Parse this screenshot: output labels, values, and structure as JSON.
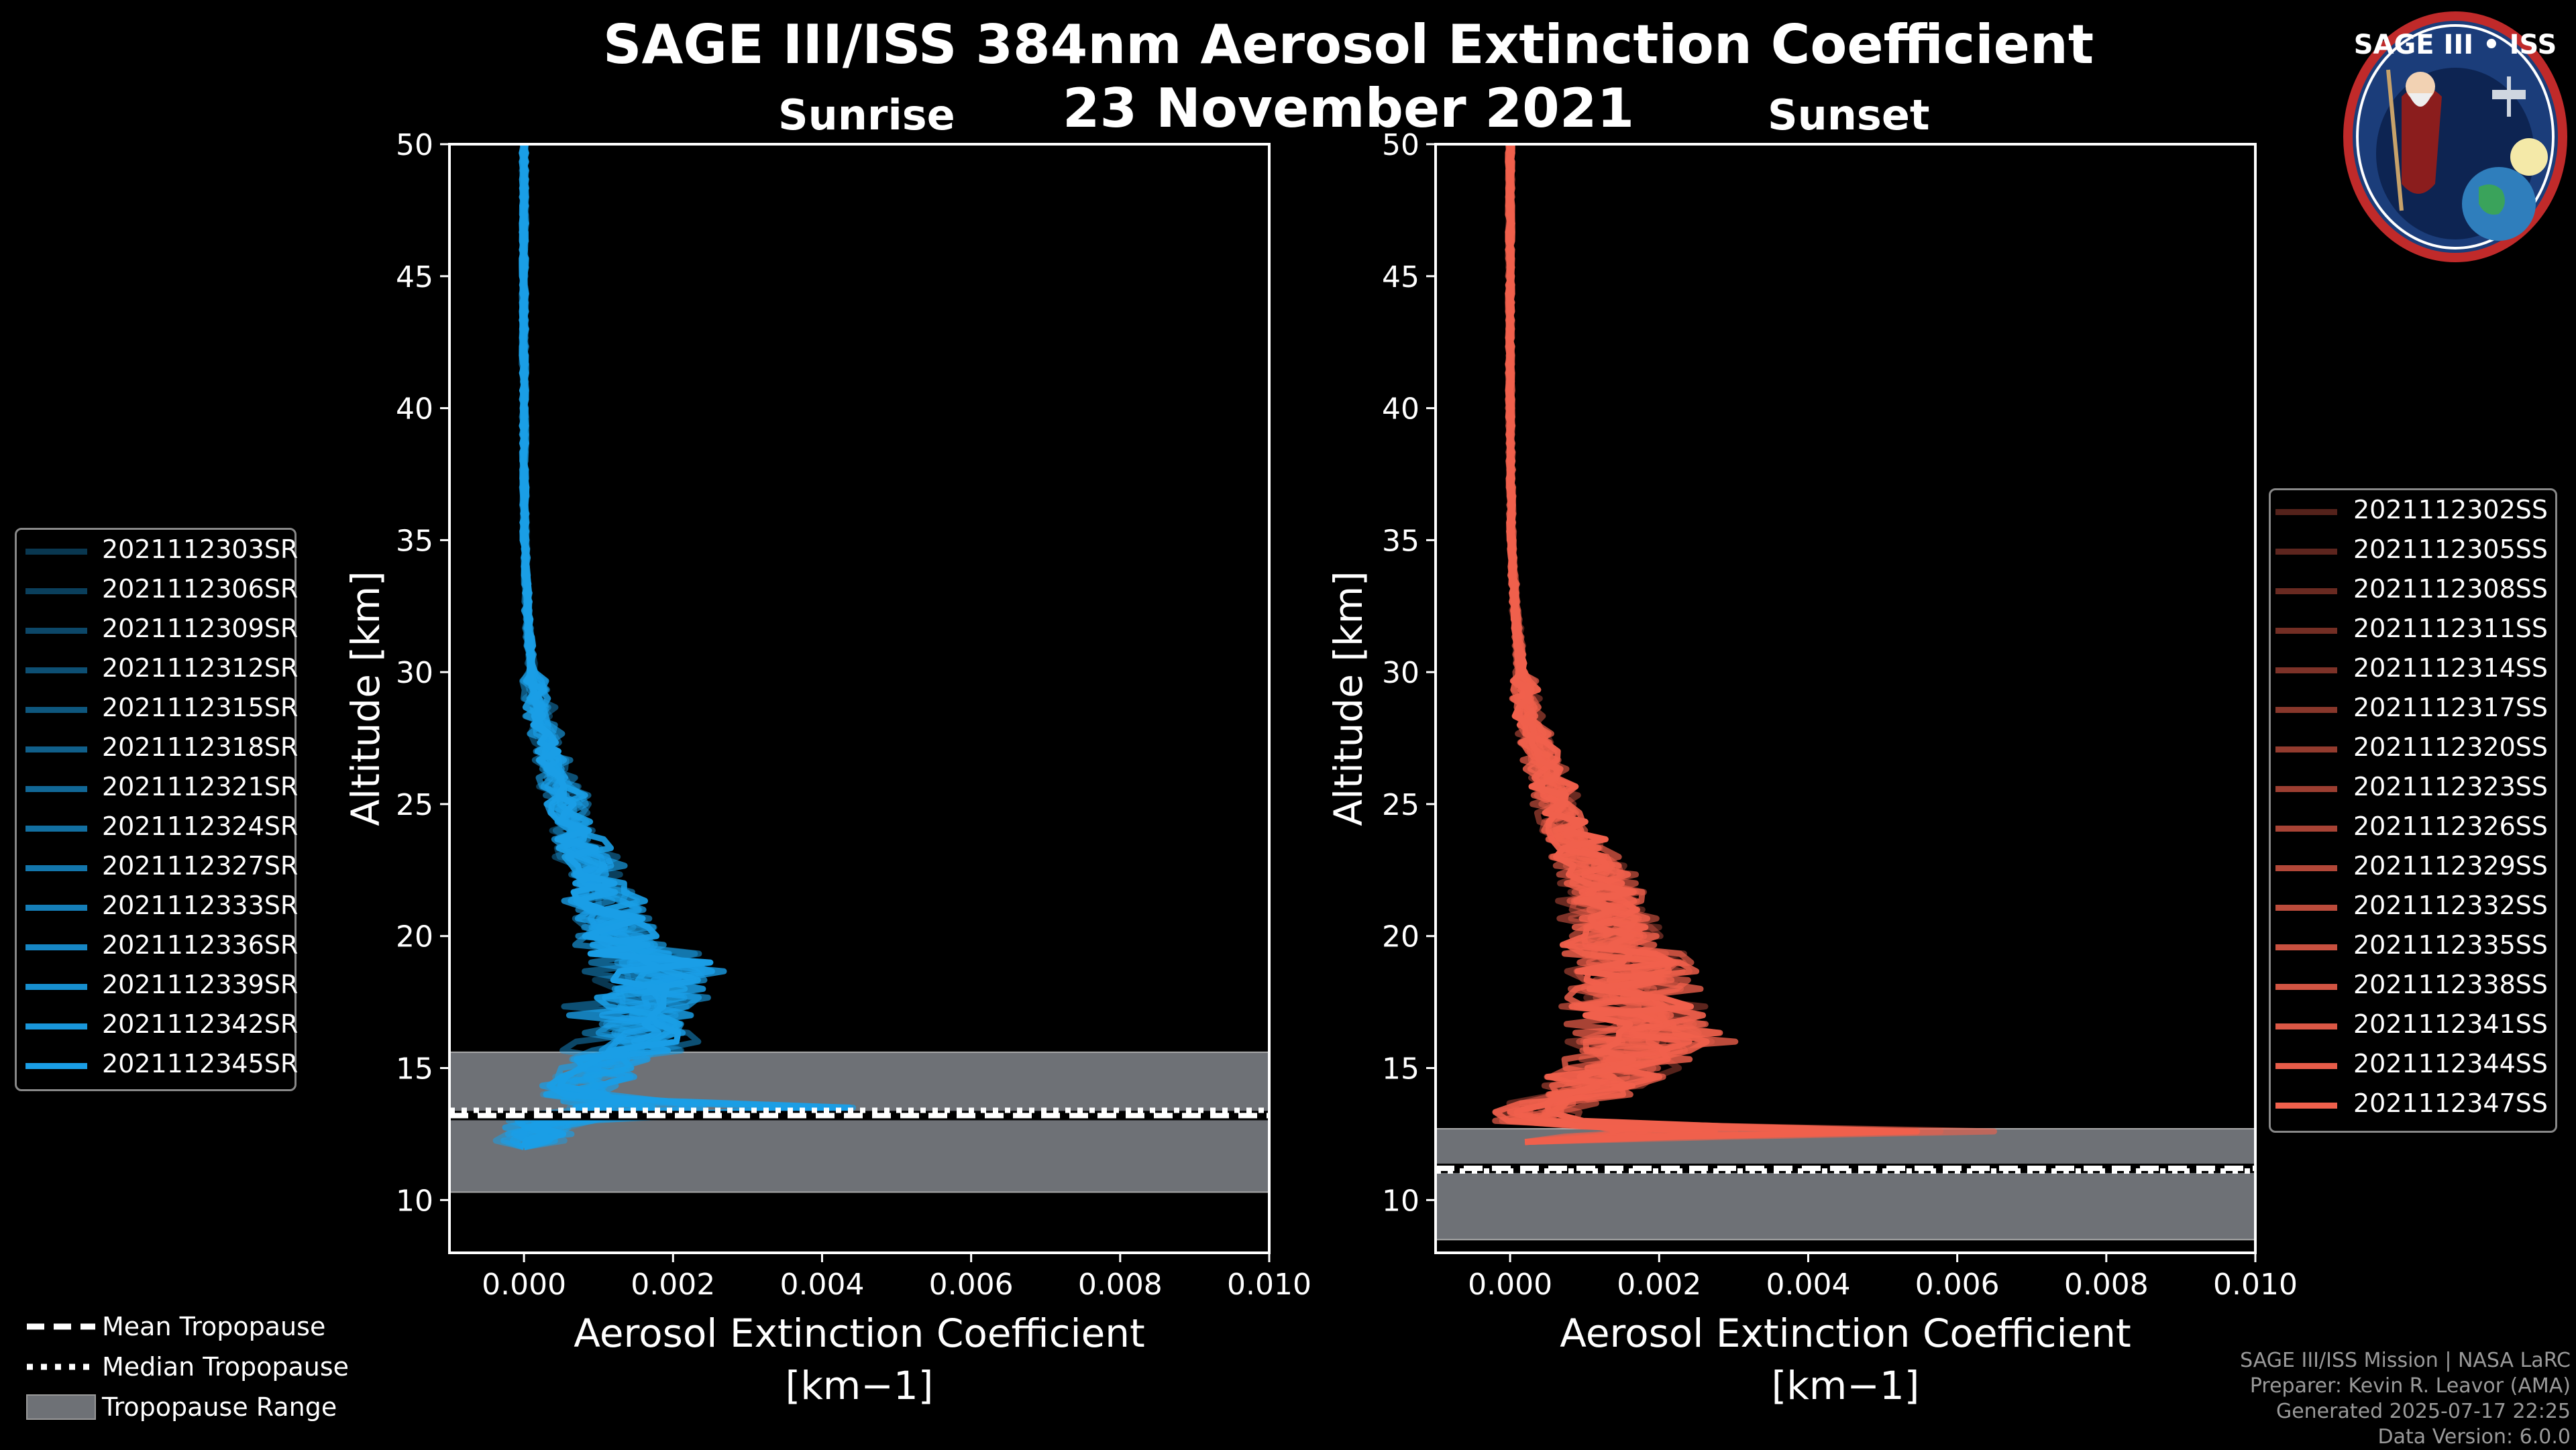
{
  "header": {
    "title_line1": "SAGE III/ISS 384nm Aerosol Extinction Coefficient",
    "title_line2": "23 November 2021",
    "sunrise_label": "Sunrise",
    "sunset_label": "Sunset"
  },
  "logo": {
    "text": "SAGE III • ISS"
  },
  "legend_sr": [
    "2021112303SR",
    "2021112306SR",
    "2021112309SR",
    "2021112312SR",
    "2021112315SR",
    "2021112318SR",
    "2021112321SR",
    "2021112324SR",
    "2021112327SR",
    "2021112333SR",
    "2021112336SR",
    "2021112339SR",
    "2021112342SR",
    "2021112345SR"
  ],
  "legend_ss": [
    "2021112302SS",
    "2021112305SS",
    "2021112308SS",
    "2021112311SS",
    "2021112314SS",
    "2021112317SS",
    "2021112320SS",
    "2021112323SS",
    "2021112326SS",
    "2021112329SS",
    "2021112332SS",
    "2021112335SS",
    "2021112338SS",
    "2021112341SS",
    "2021112344SS",
    "2021112347SS"
  ],
  "legend_trop": {
    "mean": "Mean Tropopause",
    "median": "Median Tropopause",
    "range": "Tropopause Range"
  },
  "credits": {
    "line1": "SAGE III/ISS Mission | NASA LaRC",
    "line2": "Preparer: Kevin R. Leavor (AMA)",
    "line3": "Generated 2025-07-17 22:25",
    "line4": "Data Version: 6.0.0"
  },
  "colors": {
    "sunrise": "#1a9ee6",
    "sunset": "#f0604c",
    "trop_fill": "#6e7176",
    "background": "#000000"
  },
  "chart_data": [
    {
      "type": "line",
      "name": "sunrise",
      "title": "Sunrise",
      "xlabel": "Aerosol Extinction Coefficient",
      "xlabel_unit": "[km−1]",
      "ylabel": "Altitude [km]",
      "xlim": [
        -0.001,
        0.01
      ],
      "ylim": [
        8,
        50
      ],
      "xticks": [
        "0.000",
        "0.002",
        "0.004",
        "0.006",
        "0.008",
        "0.010"
      ],
      "xtick_values": [
        0,
        0.002,
        0.004,
        0.006,
        0.008,
        0.01
      ],
      "yticks": [
        "10",
        "15",
        "20",
        "25",
        "30",
        "35",
        "40",
        "45",
        "50"
      ],
      "ytick_values": [
        10,
        15,
        20,
        25,
        30,
        35,
        40,
        45,
        50
      ],
      "tropopause": {
        "mean": 13.2,
        "median": 13.4,
        "range": [
          10.3,
          15.6
        ]
      },
      "typical_profile": {
        "altitude": [
          50,
          45,
          40,
          35,
          32,
          30,
          28,
          26,
          24,
          22,
          20,
          19,
          18,
          17,
          16,
          15,
          14,
          13.5,
          13,
          12.5,
          12
        ],
        "extinction": [
          0.0,
          0.0,
          0.0,
          1e-05,
          5e-05,
          0.0001,
          0.00025,
          0.00045,
          0.0007,
          0.001,
          0.0013,
          0.0017,
          0.0016,
          0.0015,
          0.0014,
          0.001,
          0.0007,
          0.003,
          0.0005,
          0.0002,
          0.0
        ]
      }
    },
    {
      "type": "line",
      "name": "sunset",
      "title": "Sunset",
      "xlabel": "Aerosol Extinction Coefficient",
      "xlabel_unit": "[km−1]",
      "ylabel": "Altitude [km]",
      "xlim": [
        -0.001,
        0.01
      ],
      "ylim": [
        8,
        50
      ],
      "xticks": [
        "0.000",
        "0.002",
        "0.004",
        "0.006",
        "0.008",
        "0.010"
      ],
      "xtick_values": [
        0,
        0.002,
        0.004,
        0.006,
        0.008,
        0.01
      ],
      "yticks": [
        "10",
        "15",
        "20",
        "25",
        "30",
        "35",
        "40",
        "45",
        "50"
      ],
      "ytick_values": [
        10,
        15,
        20,
        25,
        30,
        35,
        40,
        45,
        50
      ],
      "tropopause": {
        "mean": 11.2,
        "median": 11.1,
        "range": [
          8.5,
          12.7
        ]
      },
      "typical_profile": {
        "altitude": [
          50,
          45,
          40,
          35,
          32,
          30,
          28,
          26,
          24,
          22,
          20,
          19,
          18,
          17,
          16,
          15,
          14,
          13,
          12.6,
          12.2
        ],
        "extinction": [
          0.0,
          0.0,
          0.0,
          2e-05,
          8e-05,
          0.00015,
          0.0003,
          0.0005,
          0.0008,
          0.0012,
          0.0014,
          0.0016,
          0.0017,
          0.0018,
          0.0019,
          0.0015,
          0.001,
          0.0005,
          0.0047,
          0.0002
        ]
      }
    }
  ]
}
